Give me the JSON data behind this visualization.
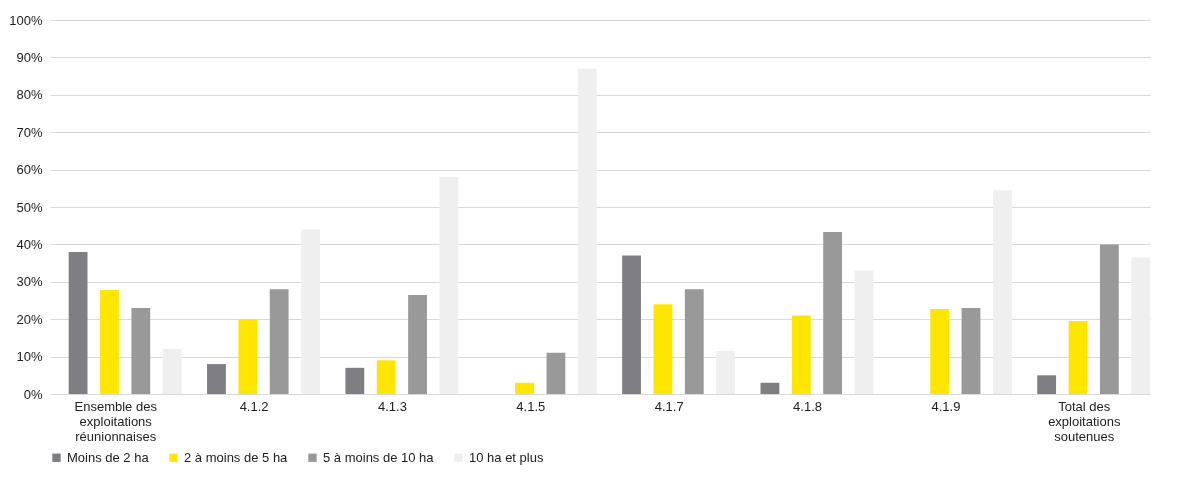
{
  "chart_data": {
    "type": "bar",
    "categories": [
      "Ensemble des exploitations réunionnaises",
      "4.1.2",
      "4.1.3",
      "4.1.5",
      "4.1.7",
      "4.1.8",
      "4.1.9",
      "Total des exploitations soutenues"
    ],
    "series": [
      {
        "name": "Moins de 2 ha",
        "color": "#7f7e83",
        "values": [
          38,
          8,
          7,
          0,
          37,
          3,
          0,
          5
        ]
      },
      {
        "name": "2 à moins de 5 ha",
        "color": "#ffe600",
        "values": [
          27.8,
          20,
          9,
          3,
          24,
          21,
          22.7,
          19.5
        ]
      },
      {
        "name": "5 à moins de 10 ha",
        "color": "#999999",
        "values": [
          23,
          28,
          26.5,
          11,
          28,
          43.3,
          23,
          40
        ]
      },
      {
        "name": "10 ha et plus",
        "color": "#efefef",
        "values": [
          12,
          44,
          58,
          87,
          11.5,
          33,
          54.5,
          36.5
        ]
      }
    ],
    "ylim": [
      0,
      100
    ],
    "yticks": [
      {
        "value": 0,
        "label": "0%"
      },
      {
        "value": 10,
        "label": "10%"
      },
      {
        "value": 20,
        "label": "20%"
      },
      {
        "value": 30,
        "label": "30%"
      },
      {
        "value": 40,
        "label": "40%"
      },
      {
        "value": 50,
        "label": "50%"
      },
      {
        "value": 60,
        "label": "60%"
      },
      {
        "value": 70,
        "label": "70%"
      },
      {
        "value": 80,
        "label": "80%"
      },
      {
        "value": 90,
        "label": "90%"
      },
      {
        "value": 100,
        "label": "100%"
      }
    ],
    "grid": "y",
    "legend": "bottom"
  }
}
